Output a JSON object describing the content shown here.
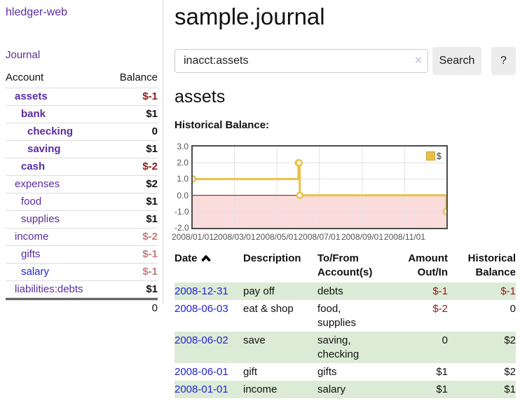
{
  "colors": {
    "brand_purple": "#5b2da0",
    "link_purple": "#5b2da0",
    "link_blue": "#2323d6",
    "negative_strong": "#8f1a1a",
    "negative_soft": "#c47c7c",
    "stripe_green": "#dcebd5",
    "chart_line_gold": "#e9c147",
    "chart_negative_fill": "#fbdcdc",
    "chart_zero_line": "#a40000"
  },
  "sidebar": {
    "brand": "hledger-web",
    "journal_link": "Journal",
    "accounts": {
      "col_account": "Account",
      "col_balance": "Balance",
      "rows": [
        {
          "name": "assets",
          "indent": 1,
          "bold": true,
          "balance": "$-1",
          "balance_tone": "neg-strong",
          "link_tone": "purple"
        },
        {
          "name": "bank",
          "indent": 2,
          "bold": true,
          "balance": "$1",
          "balance_tone": "normal",
          "link_tone": "purple"
        },
        {
          "name": "checking",
          "indent": 3,
          "bold": true,
          "balance": "0",
          "balance_tone": "normal",
          "link_tone": "purple"
        },
        {
          "name": "saving",
          "indent": 3,
          "bold": true,
          "balance": "$1",
          "balance_tone": "normal",
          "link_tone": "purple"
        },
        {
          "name": "cash",
          "indent": 2,
          "bold": true,
          "balance": "$-2",
          "balance_tone": "neg-strong",
          "link_tone": "purple"
        },
        {
          "name": "expenses",
          "indent": 1,
          "bold": false,
          "balance": "$2",
          "balance_tone": "normal",
          "link_tone": "purple"
        },
        {
          "name": "food",
          "indent": 2,
          "bold": false,
          "balance": "$1",
          "balance_tone": "normal",
          "link_tone": "purple"
        },
        {
          "name": "supplies",
          "indent": 2,
          "bold": false,
          "balance": "$1",
          "balance_tone": "normal",
          "link_tone": "purple"
        },
        {
          "name": "income",
          "indent": 1,
          "bold": false,
          "balance": "$-2",
          "balance_tone": "neg-soft",
          "link_tone": "purple"
        },
        {
          "name": "gifts",
          "indent": 2,
          "bold": false,
          "balance": "$-1",
          "balance_tone": "neg-soft",
          "link_tone": "purple"
        },
        {
          "name": "salary",
          "indent": 2,
          "bold": false,
          "balance": "$-1",
          "balance_tone": "neg-soft",
          "link_tone": "blue"
        },
        {
          "name": "liabilities:debts",
          "indent": 1,
          "bold": false,
          "balance": "$1",
          "balance_tone": "normal",
          "link_tone": "purple"
        }
      ],
      "total": "0"
    }
  },
  "header": {
    "title": "sample.journal"
  },
  "search": {
    "value": "inacct:assets",
    "clear_icon": "×",
    "search_button": "Search",
    "help_button": "?"
  },
  "account_view": {
    "title": "assets",
    "chart_heading": "Historical Balance:"
  },
  "chart_data": {
    "type": "line",
    "step": true,
    "title": "Historical Balance:",
    "series": [
      {
        "name": "$",
        "points": [
          {
            "date": "2008-01-01",
            "day": 0,
            "value": 1
          },
          {
            "date": "2008-06-01",
            "day": 152,
            "value": 2
          },
          {
            "date": "2008-06-02",
            "day": 153,
            "value": 2
          },
          {
            "date": "2008-06-03",
            "day": 154,
            "value": 0
          },
          {
            "date": "2008-12-31",
            "day": 365,
            "value": -1
          }
        ]
      }
    ],
    "xlim_days": [
      0,
      365
    ],
    "ylim": [
      -2,
      3
    ],
    "y_ticks": [
      {
        "label": "3.0",
        "value": 3
      },
      {
        "label": "2.0",
        "value": 2
      },
      {
        "label": "1.0",
        "value": 1
      },
      {
        "label": "0.0",
        "value": 0
      },
      {
        "label": "-1.0",
        "value": -1
      },
      {
        "label": "-2.0",
        "value": -2
      }
    ],
    "x_ticks": [
      {
        "label": "2008/01/01",
        "day": 0
      },
      {
        "label": "2008/03/01",
        "day": 60
      },
      {
        "label": "2008/05/01",
        "day": 121
      },
      {
        "label": "2008/07/01",
        "day": 182
      },
      {
        "label": "2008/09/01",
        "day": 244
      },
      {
        "label": "2008/11/01",
        "day": 305
      }
    ],
    "legend": {
      "label": "$",
      "position": "top-right"
    },
    "grid": true
  },
  "register": {
    "columns": {
      "date": "Date",
      "description": "Description",
      "accounts": "To/From Account(s)",
      "amount": "Amount Out/In",
      "balance": "Historical Balance"
    },
    "sort": {
      "column": "date",
      "icon": "caret-up-icon"
    },
    "rows": [
      {
        "date": "2008-12-31",
        "description": "pay off",
        "accounts": "debts",
        "amount": "$-1",
        "amount_tone": "neg",
        "balance": "$-1",
        "balance_tone": "neg",
        "striped": true
      },
      {
        "date": "2008-06-03",
        "description": "eat & shop",
        "accounts": "food, supplies",
        "amount": "$-2",
        "amount_tone": "neg",
        "balance": "0",
        "balance_tone": "normal",
        "striped": false
      },
      {
        "date": "2008-06-02",
        "description": "save",
        "accounts": "saving, checking",
        "amount": "0",
        "amount_tone": "normal",
        "balance": "$2",
        "balance_tone": "normal",
        "striped": true
      },
      {
        "date": "2008-06-01",
        "description": "gift",
        "accounts": "gifts",
        "amount": "$1",
        "amount_tone": "normal",
        "balance": "$2",
        "balance_tone": "normal",
        "striped": false
      },
      {
        "date": "2008-01-01",
        "description": "income",
        "accounts": "salary",
        "amount": "$1",
        "amount_tone": "normal",
        "balance": "$1",
        "balance_tone": "normal",
        "striped": true
      }
    ]
  }
}
